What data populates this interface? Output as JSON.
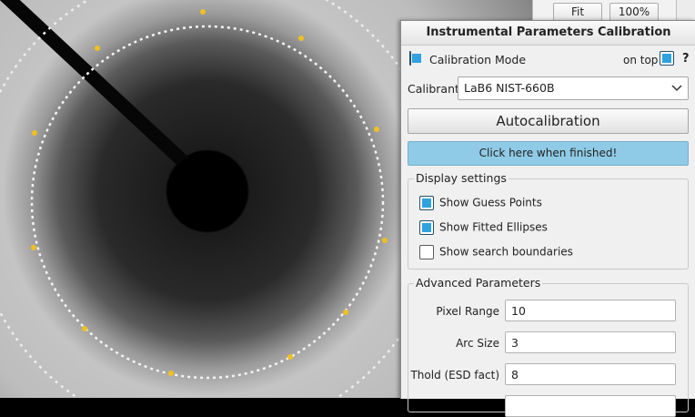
{
  "toolbar": {
    "fit_label": "Fit",
    "zoom_label": "100%"
  },
  "panel": {
    "title": "Instrumental Parameters Calibration",
    "calibration_mode_label": "Calibration Mode",
    "calibration_mode_checked": true,
    "on_top_label": "on top",
    "on_top_checked": true,
    "help_label": "?",
    "calibrant_label": "Calibrant",
    "calibrant_value": "LaB6 NIST-660B",
    "autocalibration_label": "Autocalibration",
    "finished_label": "Click here when finished!",
    "display_settings": {
      "title": "Display settings",
      "options": [
        {
          "label": "Show Guess Points",
          "checked": true
        },
        {
          "label": "Show Fitted Ellipses",
          "checked": true
        },
        {
          "label": "Show search boundaries",
          "checked": false
        }
      ]
    },
    "advanced": {
      "title": "Advanced Parameters",
      "params": [
        {
          "label": "Pixel Range",
          "value": "10"
        },
        {
          "label": "Arc Size",
          "value": "3"
        },
        {
          "label": "Thold (ESD fact)",
          "value": "8"
        }
      ]
    }
  },
  "colors": {
    "accent": "#2ea3df",
    "finished_button": "#8fcbe6",
    "guess_point": "#f0c020"
  }
}
